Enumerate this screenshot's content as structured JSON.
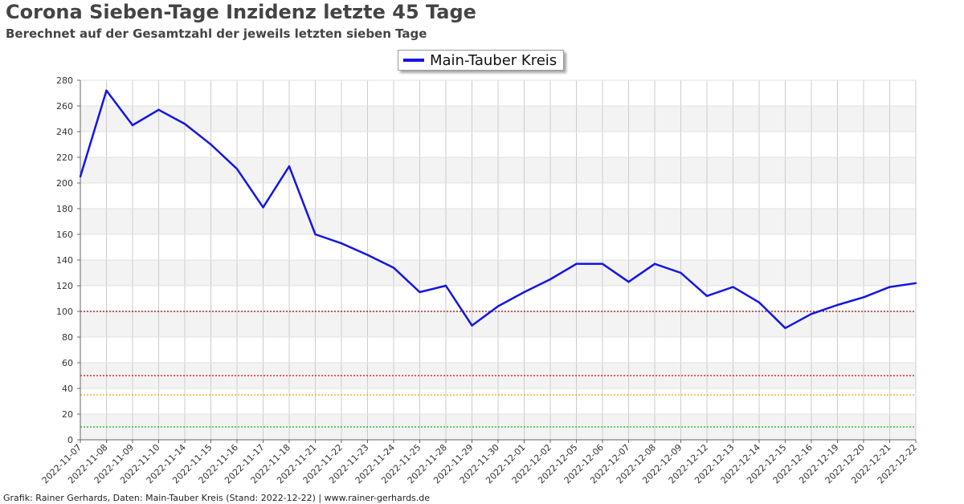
{
  "title": "Corona Sieben-Tage Inzidenz letzte 45 Tage",
  "subtitle": "Berechnet auf der Gesamtzahl der jeweils letzten sieben Tage",
  "footer": "Grafik: Rainer Gerhards, Daten: Main-Tauber Kreis (Stand: 2022-12-22) | www.rainer-gerhards.de",
  "colors": {
    "series": "#1515e6",
    "grid": "#cccccc",
    "band": "#f3f3f3",
    "axis": "#666666"
  },
  "chart_data": {
    "type": "line",
    "title": "Corona Sieben-Tage Inzidenz letzte 45 Tage",
    "subtitle": "Berechnet auf der Gesamtzahl der jeweils letzten sieben Tage",
    "xlabel": "",
    "ylabel": "",
    "ylim": [
      0,
      280
    ],
    "yticks": [
      0,
      20,
      40,
      60,
      80,
      100,
      120,
      140,
      160,
      180,
      200,
      220,
      240,
      260,
      280
    ],
    "grid": true,
    "legend_position": "top-center",
    "x": [
      "2022-11-07",
      "2022-11-08",
      "2022-11-09",
      "2022-11-10",
      "2022-11-14",
      "2022-11-15",
      "2022-11-16",
      "2022-11-17",
      "2022-11-18",
      "2022-11-21",
      "2022-11-22",
      "2022-11-23",
      "2022-11-24",
      "2022-11-25",
      "2022-11-28",
      "2022-11-29",
      "2022-11-30",
      "2022-12-01",
      "2022-12-02",
      "2022-12-05",
      "2022-12-06",
      "2022-12-07",
      "2022-12-08",
      "2022-12-09",
      "2022-12-12",
      "2022-12-13",
      "2022-12-14",
      "2022-12-15",
      "2022-12-16",
      "2022-12-19",
      "2022-12-20",
      "2022-12-21",
      "2022-12-22"
    ],
    "series": [
      {
        "name": "Main-Tauber Kreis",
        "color": "#1515e6",
        "values": [
          205,
          272,
          245,
          257,
          246,
          230,
          211,
          181,
          213,
          160,
          153,
          144,
          134,
          115,
          120,
          89,
          104,
          115,
          125,
          137,
          137,
          123,
          137,
          130,
          112,
          119,
          107,
          87,
          98,
          105,
          111,
          119,
          122
        ]
      }
    ],
    "thresholds": [
      {
        "value": 100,
        "color": "#990000"
      },
      {
        "value": 50,
        "color": "#dd0000"
      },
      {
        "value": 35,
        "color": "#f0a000"
      },
      {
        "value": 10,
        "color": "#00bb00"
      }
    ]
  }
}
